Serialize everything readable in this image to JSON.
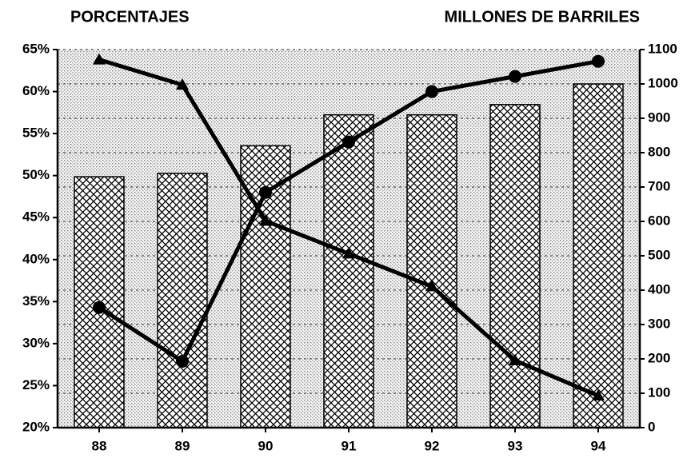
{
  "chart_data": {
    "type": "bar",
    "y_label": "PORCENTAJES",
    "y2_label": "MILLONES DE BARRILES",
    "categories": [
      "88",
      "89",
      "90",
      "91",
      "92",
      "93",
      "94"
    ],
    "ylim": [
      20,
      65
    ],
    "yticks": [
      {
        "value": 20,
        "label": "20%"
      },
      {
        "value": 25,
        "label": "25%"
      },
      {
        "value": 30,
        "label": "30%"
      },
      {
        "value": 35,
        "label": "35%"
      },
      {
        "value": 40,
        "label": "40%"
      },
      {
        "value": 45,
        "label": "45%"
      },
      {
        "value": 50,
        "label": "50%"
      },
      {
        "value": 55,
        "label": "55%"
      },
      {
        "value": 60,
        "label": "60%"
      },
      {
        "value": 65,
        "label": "65%"
      }
    ],
    "y2lim": [
      0,
      1100
    ],
    "y2ticks": [
      0,
      100,
      200,
      300,
      400,
      500,
      600,
      700,
      800,
      900,
      1000,
      1100
    ],
    "grid": true,
    "series": [
      {
        "type": "bar",
        "axis": "y2",
        "color": "#000000",
        "values": [
          730,
          740,
          820,
          910,
          910,
          940,
          1000
        ]
      },
      {
        "type": "line",
        "marker": "circle",
        "color": "#000000",
        "values": [
          34.3,
          27.9,
          48,
          54,
          60,
          61.8,
          63.6
        ]
      },
      {
        "type": "line",
        "marker": "triangle",
        "color": "#000000",
        "values": [
          63.8,
          60.8,
          44.6,
          40.7,
          36.8,
          28,
          23.8
        ]
      }
    ]
  }
}
